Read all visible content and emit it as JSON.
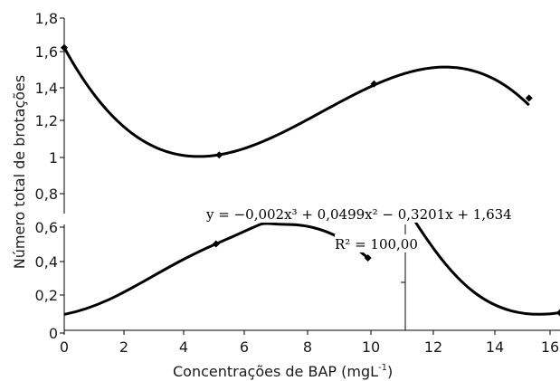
{
  "chart_data": {
    "type": "line",
    "title": "",
    "xlabel": "Concentrações de BAP (mgL-1)",
    "xlabel_sup": "-1",
    "ylabel": "Número total de brotações",
    "xlim": [
      0,
      16
    ],
    "ylim": [
      0,
      1.8
    ],
    "x_ticks": [
      "0",
      "2",
      "4",
      "6",
      "8",
      "10",
      "12",
      "14",
      "16"
    ],
    "y_ticks": [
      "0",
      "0,2",
      "0,4",
      "0,6",
      "0,8",
      "1",
      "1,2",
      "1,4",
      "1,6",
      "1,8"
    ],
    "grid": false,
    "legend": "none",
    "series_color": "#000000",
    "series": [
      {
        "name": "",
        "points": [
          {
            "x": 0,
            "y": 1.634
          },
          {
            "x": 5,
            "y": 1.03
          },
          {
            "x": 10,
            "y": 1.43
          },
          {
            "x": 15,
            "y": 1.35
          }
        ],
        "trend_coefficients": [
          -0.002,
          0.0499,
          -0.3201,
          1.634
        ]
      },
      {
        "name": "",
        "points": [
          {
            "x": 4.9,
            "y": 0.49
          },
          {
            "x": 9.8,
            "y": 0.41
          }
        ]
      },
      {
        "name": "",
        "points": [
          {
            "x": 11.2,
            "y": 0.65
          },
          {
            "x": 16,
            "y": 0.1
          }
        ]
      }
    ],
    "annotations": {
      "equation": "y = −0,002x³ + 0,0499x² − 0,3201x + 1,634",
      "r_squared": "R² = 100,00"
    }
  }
}
